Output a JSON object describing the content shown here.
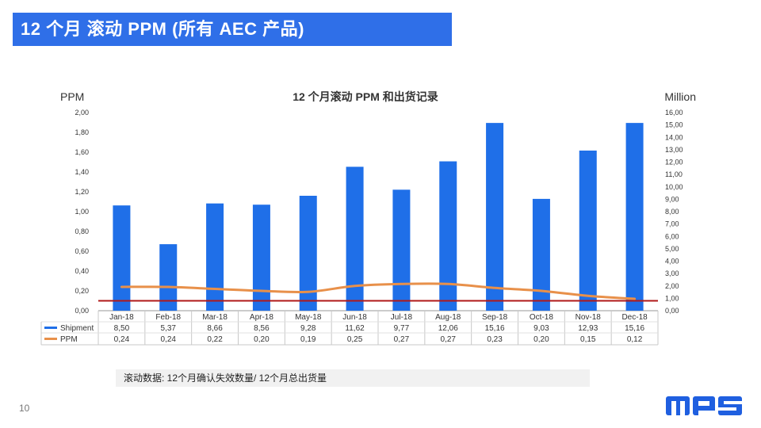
{
  "slide": {
    "title": "12 个月 滚动 PPM (所有 AEC 产品)",
    "page_number": "10",
    "formula_note": "滚动数据: 12个月确认失效数量/ 12个月总出货量",
    "logo_text": "MPS",
    "colors": {
      "title_bg": "#2f6fe8",
      "logo": "#1f5fe0"
    }
  },
  "chart_data": {
    "type": "bar",
    "title": "12 个月滚动 PPM 和出货记录",
    "y_left_label": "PPM",
    "y_right_label": "Million",
    "y_left_ticks": [
      "0,00",
      "0,20",
      "0,40",
      "0,60",
      "0,80",
      "1,00",
      "1,20",
      "1,40",
      "1,60",
      "1,80",
      "2,00"
    ],
    "y_right_ticks": [
      "0,00",
      "1,00",
      "2,00",
      "3,00",
      "4,00",
      "5,00",
      "6,00",
      "7,00",
      "8,00",
      "9,00",
      "10,00",
      "11,00",
      "12,00",
      "13,00",
      "14,00",
      "15,00",
      "16,00"
    ],
    "y_left_range": [
      0,
      2.0
    ],
    "y_right_range": [
      0,
      16.0
    ],
    "categories": [
      "Jan-18",
      "Feb-18",
      "Mar-18",
      "Apr-18",
      "May-18",
      "Jun-18",
      "Jul-18",
      "Aug-18",
      "Sep-18",
      "Oct-18",
      "Nov-18",
      "Dec-18"
    ],
    "series": [
      {
        "name": "Shipment",
        "type": "bar",
        "axis": "right",
        "color": "#1f6fe8",
        "values": [
          8.5,
          5.37,
          8.66,
          8.56,
          9.28,
          11.62,
          9.77,
          12.06,
          15.16,
          9.03,
          12.93,
          15.16
        ],
        "labels": [
          "8,50",
          "5,37",
          "8,66",
          "8,56",
          "9,28",
          "11,62",
          "9,77",
          "12,06",
          "15,16",
          "9,03",
          "12,93",
          "15,16"
        ]
      },
      {
        "name": "PPM",
        "type": "line",
        "axis": "left",
        "color": "#e8904a",
        "values": [
          0.24,
          0.24,
          0.22,
          0.2,
          0.19,
          0.25,
          0.27,
          0.27,
          0.23,
          0.2,
          0.15,
          0.12
        ],
        "labels": [
          "0,24",
          "0,24",
          "0,22",
          "0,20",
          "0,19",
          "0,25",
          "0,27",
          "0,27",
          "0,23",
          "0,20",
          "0,15",
          "0,12"
        ]
      }
    ],
    "target_line": {
      "value": 0.1,
      "axis": "left",
      "color": "#b01818"
    },
    "grid": false,
    "legend": "bottom-left"
  }
}
